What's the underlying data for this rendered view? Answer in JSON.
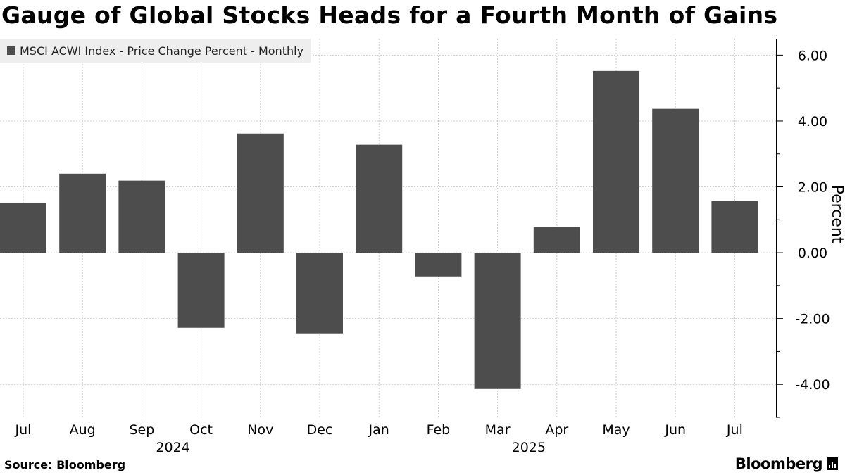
{
  "title": "Gauge of Global Stocks Heads for a Fourth Month of Gains",
  "legend_label": "MSCI ACWI Index - Price Change Percent - Monthly",
  "source": "Source: Bloomberg",
  "brand": "Bloomberg",
  "colors": {
    "bar": "#4d4d4d",
    "grid": "#cccccc",
    "axis": "#000000",
    "background": "#ffffff",
    "legend_bg": "#eeeeee"
  },
  "chart_data": {
    "type": "bar",
    "categories": [
      "Jul",
      "Aug",
      "Sep",
      "Oct",
      "Nov",
      "Dec",
      "Jan",
      "Feb",
      "Mar",
      "Apr",
      "May",
      "Jun",
      "Jul"
    ],
    "year_labels": [
      {
        "label": "2024",
        "category_index": 3
      },
      {
        "label": "2025",
        "category_index": 9
      }
    ],
    "series": [
      {
        "name": "MSCI ACWI Index - Price Change Percent - Monthly",
        "values": [
          1.52,
          2.4,
          2.19,
          -2.28,
          3.62,
          -2.45,
          3.28,
          -0.72,
          -4.14,
          0.78,
          5.52,
          4.37,
          1.57
        ]
      }
    ],
    "ylabel": "Percent",
    "ylim": [
      -5.0,
      6.5
    ],
    "yticks": [
      6,
      4,
      2,
      0,
      -2,
      -4
    ],
    "ytick_labels": [
      "6.00",
      "4.00",
      "2.00",
      "0.00",
      "-2.00",
      "-4.00"
    ],
    "y_axis_position": "right",
    "grid": true,
    "legend_position": "top-left"
  }
}
